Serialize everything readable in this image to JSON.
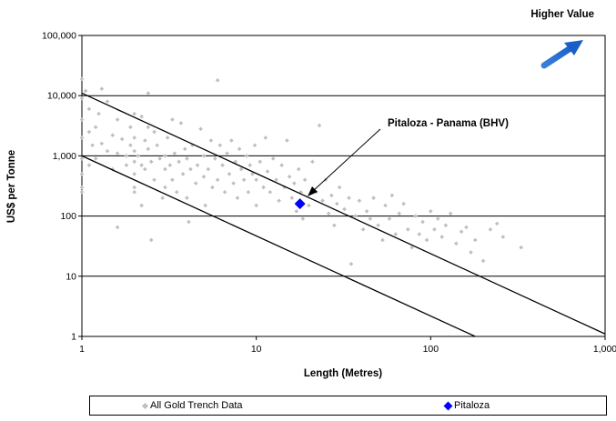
{
  "chart_data": {
    "type": "scatter",
    "title": "",
    "top_right_label": "Higher Value",
    "xlabel": "Length (Metres)",
    "ylabel": "US$ per Tonne",
    "xscale": "log",
    "yscale": "log",
    "xlim": [
      1,
      1000
    ],
    "ylim": [
      1,
      100000
    ],
    "x_ticks": [
      {
        "value": 1,
        "label": "1"
      },
      {
        "value": 10,
        "label": "10"
      },
      {
        "value": 100,
        "label": "100"
      },
      {
        "value": 1000,
        "label": "1,000"
      }
    ],
    "y_ticks": [
      {
        "value": 1,
        "label": "1"
      },
      {
        "value": 10,
        "label": "10"
      },
      {
        "value": 100,
        "label": "100"
      },
      {
        "value": 1000,
        "label": "1,000"
      },
      {
        "value": 10000,
        "label": "10,000"
      },
      {
        "value": 100000,
        "label": "100,000"
      }
    ],
    "grid": "horizontal major lines",
    "legend_position": "bottom",
    "series": [
      {
        "name": "All Gold Trench Data",
        "marker": "small diamond",
        "color": "#bfbfbf",
        "points": [
          [
            1,
            19000
          ],
          [
            1,
            9000
          ],
          [
            1,
            4000
          ],
          [
            1,
            2000
          ],
          [
            1,
            900
          ],
          [
            1,
            500
          ],
          [
            1,
            300
          ],
          [
            1,
            250
          ],
          [
            1.05,
            12000
          ],
          [
            1.1,
            6000
          ],
          [
            1.1,
            2500
          ],
          [
            1.1,
            700
          ],
          [
            1.15,
            1500
          ],
          [
            1.2,
            3000
          ],
          [
            1.2,
            900
          ],
          [
            1.25,
            5000
          ],
          [
            1.3,
            13000
          ],
          [
            1.3,
            1600
          ],
          [
            1.4,
            8000
          ],
          [
            1.4,
            1200
          ],
          [
            1.5,
            2200
          ],
          [
            1.5,
            600
          ],
          [
            1.6,
            4000
          ],
          [
            1.6,
            1100
          ],
          [
            1.6,
            65
          ],
          [
            1.7,
            1900
          ],
          [
            1.8,
            1000
          ],
          [
            1.8,
            700
          ],
          [
            1.9,
            3000
          ],
          [
            1.9,
            1500
          ],
          [
            2,
            5000
          ],
          [
            2,
            2000
          ],
          [
            2,
            1200
          ],
          [
            2,
            800
          ],
          [
            2,
            500
          ],
          [
            2,
            300
          ],
          [
            2,
            250
          ],
          [
            2.1,
            1000
          ],
          [
            2.2,
            4500
          ],
          [
            2.2,
            700
          ],
          [
            2.2,
            150
          ],
          [
            2.3,
            1800
          ],
          [
            2.3,
            600
          ],
          [
            2.4,
            11000
          ],
          [
            2.4,
            3000
          ],
          [
            2.4,
            1300
          ],
          [
            2.5,
            800
          ],
          [
            2.5,
            40
          ],
          [
            2.6,
            2500
          ],
          [
            2.6,
            400
          ],
          [
            2.7,
            1500
          ],
          [
            2.8,
            900
          ],
          [
            2.9,
            200
          ],
          [
            3,
            1000
          ],
          [
            3,
            600
          ],
          [
            3,
            300
          ],
          [
            3.1,
            2000
          ],
          [
            3.2,
            700
          ],
          [
            3.3,
            4000
          ],
          [
            3.3,
            400
          ],
          [
            3.4,
            1100
          ],
          [
            3.5,
            250
          ],
          [
            3.6,
            800
          ],
          [
            3.7,
            3500
          ],
          [
            3.8,
            500
          ],
          [
            3.9,
            1300
          ],
          [
            4,
            900
          ],
          [
            4,
            200
          ],
          [
            4.1,
            80
          ],
          [
            4.2,
            600
          ],
          [
            4.3,
            1500
          ],
          [
            4.5,
            350
          ],
          [
            4.6,
            700
          ],
          [
            4.8,
            2800
          ],
          [
            5,
            1000
          ],
          [
            5,
            450
          ],
          [
            5.1,
            150
          ],
          [
            5.3,
            600
          ],
          [
            5.5,
            1800
          ],
          [
            5.6,
            300
          ],
          [
            5.8,
            900
          ],
          [
            6,
            18000
          ],
          [
            6,
            400
          ],
          [
            6.2,
            1500
          ],
          [
            6.4,
            700
          ],
          [
            6.6,
            250
          ],
          [
            6.8,
            1100
          ],
          [
            7,
            500
          ],
          [
            7.2,
            1800
          ],
          [
            7.4,
            350
          ],
          [
            7.6,
            800
          ],
          [
            7.8,
            200
          ],
          [
            8,
            1300
          ],
          [
            8.2,
            600
          ],
          [
            8.5,
            400
          ],
          [
            8.8,
            1000
          ],
          [
            9,
            250
          ],
          [
            9.2,
            700
          ],
          [
            9.5,
            500
          ],
          [
            9.8,
            1500
          ],
          [
            10,
            400
          ],
          [
            10,
            150
          ],
          [
            10.5,
            800
          ],
          [
            11,
            300
          ],
          [
            11.3,
            2000
          ],
          [
            11.6,
            550
          ],
          [
            12,
            250
          ],
          [
            12.5,
            900
          ],
          [
            13,
            400
          ],
          [
            13.5,
            180
          ],
          [
            14,
            700
          ],
          [
            14.5,
            300
          ],
          [
            15,
            1800
          ],
          [
            15.5,
            450
          ],
          [
            16,
            200
          ],
          [
            16.5,
            350
          ],
          [
            17,
            120
          ],
          [
            17.5,
            600
          ],
          [
            18,
            250
          ],
          [
            18.5,
            90
          ],
          [
            19,
            400
          ],
          [
            20,
            150
          ],
          [
            21,
            800
          ],
          [
            22,
            250
          ],
          [
            23,
            3200
          ],
          [
            24,
            180
          ],
          [
            25,
            400
          ],
          [
            26,
            110
          ],
          [
            27,
            220
          ],
          [
            28,
            70
          ],
          [
            29,
            160
          ],
          [
            30,
            300
          ],
          [
            32,
            130
          ],
          [
            34,
            200
          ],
          [
            35,
            16
          ],
          [
            37,
            100
          ],
          [
            39,
            180
          ],
          [
            41,
            60
          ],
          [
            43,
            120
          ],
          [
            45,
            90
          ],
          [
            47,
            200
          ],
          [
            50,
            70
          ],
          [
            53,
            40
          ],
          [
            55,
            150
          ],
          [
            58,
            90
          ],
          [
            60,
            220
          ],
          [
            63,
            50
          ],
          [
            66,
            110
          ],
          [
            70,
            160
          ],
          [
            74,
            60
          ],
          [
            78,
            30
          ],
          [
            82,
            100
          ],
          [
            86,
            50
          ],
          [
            90,
            80
          ],
          [
            95,
            40
          ],
          [
            100,
            120
          ],
          [
            105,
            60
          ],
          [
            110,
            90
          ],
          [
            116,
            45
          ],
          [
            122,
            70
          ],
          [
            130,
            110
          ],
          [
            140,
            35
          ],
          [
            150,
            55
          ],
          [
            160,
            65
          ],
          [
            170,
            25
          ],
          [
            180,
            40
          ],
          [
            200,
            18
          ],
          [
            220,
            60
          ],
          [
            240,
            75
          ],
          [
            260,
            45
          ],
          [
            330,
            30
          ]
        ]
      },
      {
        "name": "Pitaloza",
        "marker": "diamond",
        "color": "#0000ff",
        "points": [
          [
            17.8,
            160
          ]
        ]
      }
    ],
    "reference_lines": [
      {
        "from": [
          1,
          11000
        ],
        "to": [
          1000,
          1.1
        ]
      },
      {
        "from": [
          1,
          1000
        ],
        "to": [
          180,
          1
        ]
      }
    ],
    "annotations": [
      {
        "text": "Pitaloza - Panama (BHV)",
        "points_to": [
          17.8,
          160
        ]
      }
    ]
  }
}
